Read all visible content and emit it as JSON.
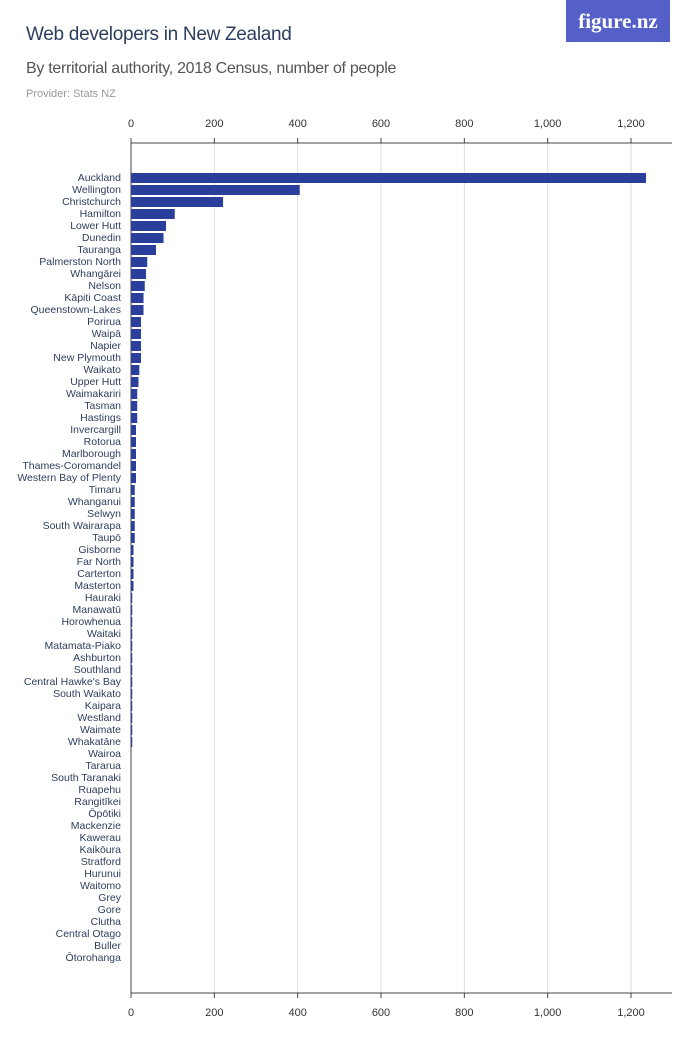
{
  "header": {
    "title": "Web developers in New Zealand",
    "subtitle": "By territorial authority, 2018 Census, number of people",
    "provider": "Provider: Stats NZ",
    "logo": "figure.nz"
  },
  "colors": {
    "bar": "#2a3e9b",
    "text": "#2d3e5e",
    "grid": "#dddddd",
    "logo_bg": "#5460c8"
  },
  "chart_data": {
    "type": "bar",
    "orientation": "horizontal",
    "title": "Web developers in New Zealand",
    "subtitle": "By territorial authority, 2018 Census, number of people",
    "xlim": [
      0,
      1300
    ],
    "ticks": [
      0,
      200,
      400,
      600,
      800,
      1000,
      1200
    ],
    "tick_labels": [
      "0",
      "200",
      "400",
      "600",
      "800",
      "1,000",
      "1,200"
    ],
    "grid": true,
    "categories": [
      "Auckland",
      "Wellington",
      "Christchurch",
      "Hamilton",
      "Lower Hutt",
      "Dunedin",
      "Tauranga",
      "Palmerston North",
      "Whangārei",
      "Nelson",
      "Kāpiti Coast",
      "Queenstown-Lakes",
      "Porirua",
      "Waipā",
      "Napier",
      "New Plymouth",
      "Waikato",
      "Upper Hutt",
      "Waimakariri",
      "Tasman",
      "Hastings",
      "Invercargill",
      "Rotorua",
      "Marlborough",
      "Thames-Coromandel",
      "Western Bay of Plenty",
      "Timaru",
      "Whanganui",
      "Selwyn",
      "South Wairarapa",
      "Taupō",
      "Gisborne",
      "Far North",
      "Carterton",
      "Masterton",
      "Hauraki",
      "Manawatū",
      "Horowhenua",
      "Waitaki",
      "Matamata-Piako",
      "Ashburton",
      "Southland",
      "Central Hawke's Bay",
      "South Waikato",
      "Kaipara",
      "Westland",
      "Waimate",
      "Whakatāne",
      "Wairoa",
      "Tararua",
      "South Taranaki",
      "Ruapehu",
      "Rangitīkei",
      "Ōpōtiki",
      "Mackenzie",
      "Kawerau",
      "Kaikōura",
      "Stratford",
      "Hurunui",
      "Waitomo",
      "Grey",
      "Gore",
      "Clutha",
      "Central Otago",
      "Buller",
      "Ōtorohanga"
    ],
    "values": [
      1236,
      405,
      221,
      105,
      84,
      78,
      60,
      39,
      36,
      33,
      30,
      30,
      24,
      24,
      24,
      24,
      20,
      18,
      15,
      15,
      15,
      12,
      12,
      12,
      12,
      12,
      9,
      9,
      9,
      9,
      9,
      6,
      6,
      6,
      6,
      3,
      3,
      3,
      3,
      3,
      3,
      3,
      3,
      3,
      3,
      3,
      3,
      3,
      0,
      0,
      0,
      0,
      0,
      0,
      0,
      0,
      0,
      0,
      0,
      0,
      0,
      0,
      0,
      0,
      0,
      0
    ]
  }
}
